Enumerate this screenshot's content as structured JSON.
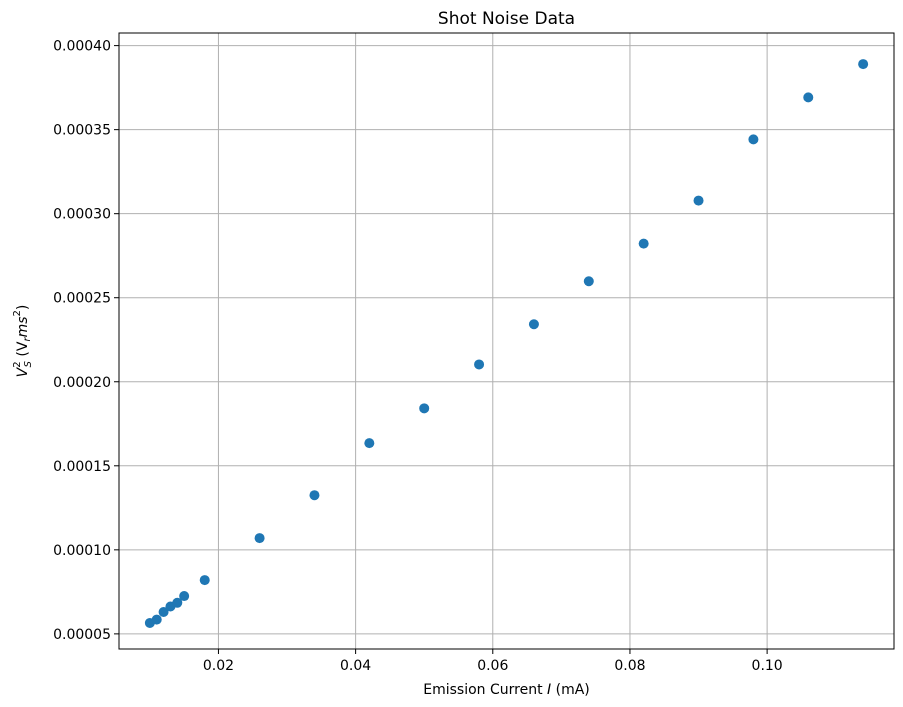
{
  "chart_data": {
    "type": "scatter",
    "title": "Shot Noise Data",
    "xlabel": {
      "prefix": "Emission Current ",
      "var": "I",
      "suffix": " (mA)"
    },
    "ylabel": {
      "V": "V",
      "sup": "2",
      "sub": "S",
      "mid": " (V",
      "r": "r",
      "ms": "ms",
      "sup2": "2",
      "close": ")"
    },
    "xlim": [
      0.0055,
      0.1185
    ],
    "ylim": [
      4.1e-05,
      0.0004075
    ],
    "x_ticks": [
      {
        "value": 0.02,
        "label": "0.02"
      },
      {
        "value": 0.04,
        "label": "0.04"
      },
      {
        "value": 0.06,
        "label": "0.06"
      },
      {
        "value": 0.08,
        "label": "0.08"
      },
      {
        "value": 0.1,
        "label": "0.10"
      }
    ],
    "y_ticks": [
      {
        "value": 5e-05,
        "label": "0.00005"
      },
      {
        "value": 0.0001,
        "label": "0.00010"
      },
      {
        "value": 0.00015,
        "label": "0.00015"
      },
      {
        "value": 0.0002,
        "label": "0.00020"
      },
      {
        "value": 0.00025,
        "label": "0.00025"
      },
      {
        "value": 0.0003,
        "label": "0.00030"
      },
      {
        "value": 0.00035,
        "label": "0.00035"
      },
      {
        "value": 0.0004,
        "label": "0.00040"
      }
    ],
    "grid": true,
    "marker_color": "#1f77b4",
    "points": [
      {
        "x": 0.01,
        "y": 5.65e-05
      },
      {
        "x": 0.011,
        "y": 5.85e-05
      },
      {
        "x": 0.012,
        "y": 6.3e-05
      },
      {
        "x": 0.013,
        "y": 6.63e-05
      },
      {
        "x": 0.014,
        "y": 6.85e-05
      },
      {
        "x": 0.015,
        "y": 7.25e-05
      },
      {
        "x": 0.018,
        "y": 8.2e-05
      },
      {
        "x": 0.026,
        "y": 0.000107
      },
      {
        "x": 0.034,
        "y": 0.0001325
      },
      {
        "x": 0.042,
        "y": 0.0001635
      },
      {
        "x": 0.05,
        "y": 0.0001842
      },
      {
        "x": 0.058,
        "y": 0.0002103
      },
      {
        "x": 0.066,
        "y": 0.0002342
      },
      {
        "x": 0.074,
        "y": 0.0002598
      },
      {
        "x": 0.082,
        "y": 0.0002822
      },
      {
        "x": 0.09,
        "y": 0.0003078
      },
      {
        "x": 0.098,
        "y": 0.0003442
      },
      {
        "x": 0.106,
        "y": 0.0003692
      },
      {
        "x": 0.114,
        "y": 0.000389
      }
    ]
  }
}
